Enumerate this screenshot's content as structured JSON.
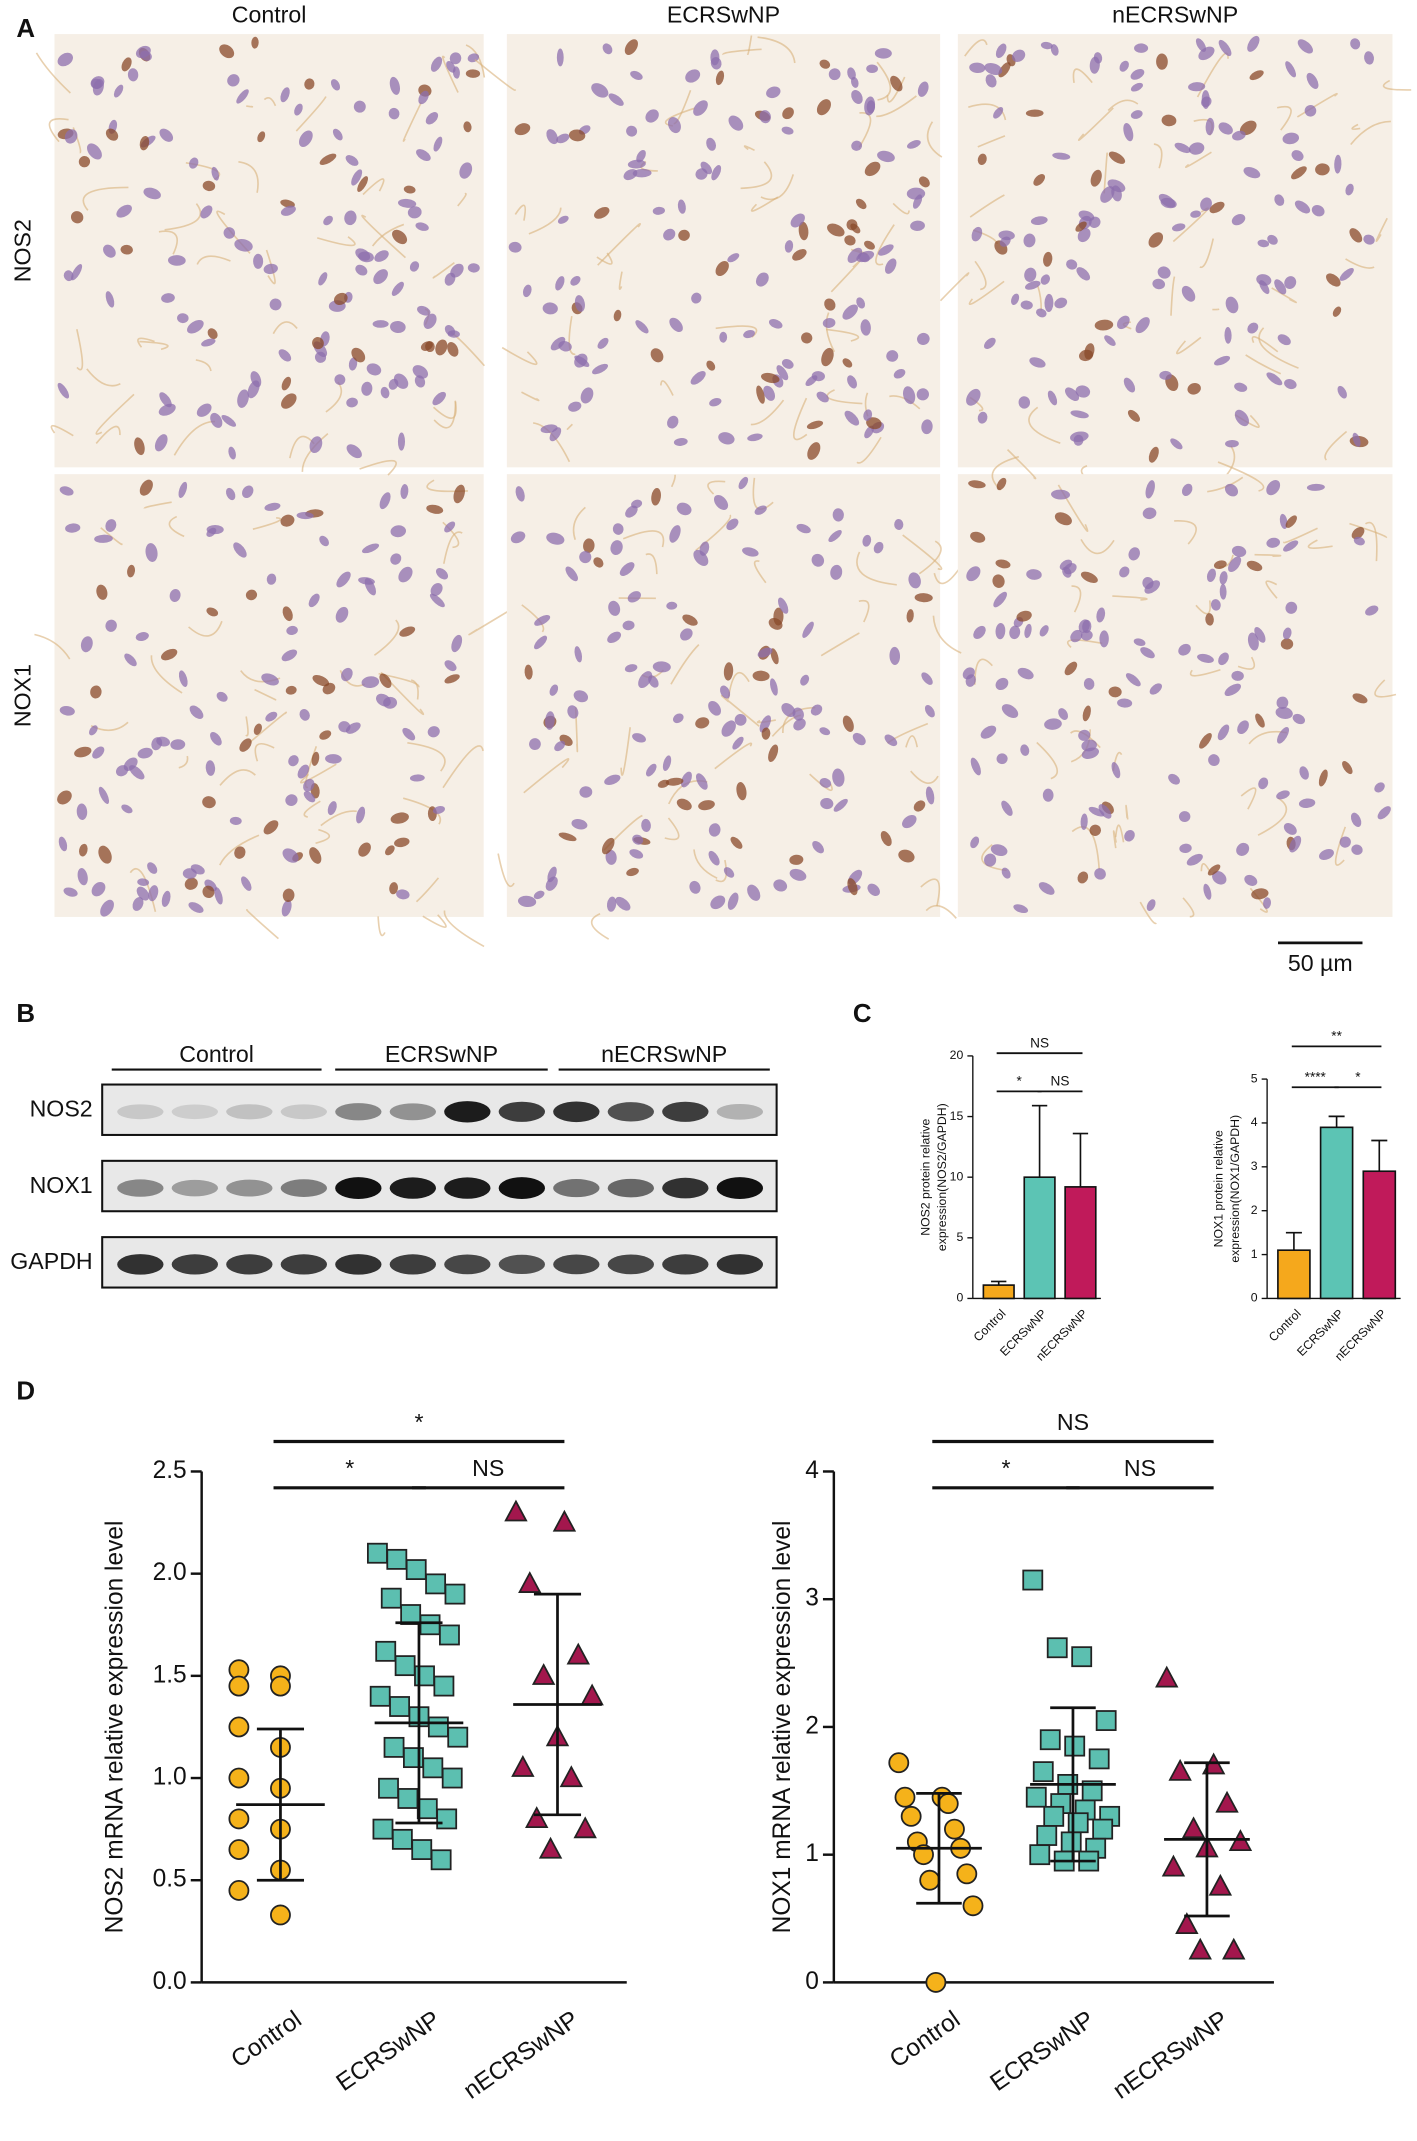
{
  "panel_a": {
    "label": "A",
    "columns": [
      "Control",
      "ECRSwNP",
      "nECRSwNP"
    ],
    "rows": [
      "NOS2",
      "NOX1"
    ],
    "scale_bar": "50 µm"
  },
  "panel_b": {
    "label": "B",
    "groups": [
      "Control",
      "ECRSwNP",
      "nECRSwNP"
    ],
    "rows": [
      "NOS2",
      "NOX1",
      "GAPDH"
    ]
  },
  "panel_c_label": "C",
  "panel_d_label": "D",
  "chart_data": [
    {
      "type": "bar",
      "ylabel": [
        "NOS2 protein relative",
        "expression(NOS2/GAPDH)"
      ],
      "categories": [
        "Control",
        "ECRSwNP",
        "nECRSwNP"
      ],
      "values": [
        1.1,
        10,
        9.2
      ],
      "errors": [
        0.3,
        5.9,
        4.4
      ],
      "colors": [
        "#f5a81c",
        "#5cc4b4",
        "#c01a5a"
      ],
      "ylim": [
        0,
        20
      ],
      "yticks": [
        0,
        5,
        10,
        15,
        20
      ],
      "comparisons": [
        {
          "groups": [
            "Control",
            "nECRSwNP"
          ],
          "label": "NS"
        },
        {
          "groups": [
            "Control",
            "ECRSwNP"
          ],
          "label": "*"
        },
        {
          "groups": [
            "ECRSwNP",
            "nECRSwNP"
          ],
          "label": "NS"
        }
      ]
    },
    {
      "type": "bar",
      "ylabel": [
        "NOX1 protein relative",
        "expression(NOX1/GAPDH)"
      ],
      "categories": [
        "Control",
        "ECRSwNP",
        "nECRSwNP"
      ],
      "values": [
        1.1,
        3.9,
        2.9
      ],
      "errors": [
        0.4,
        0.25,
        0.7
      ],
      "colors": [
        "#f5a81c",
        "#5cc4b4",
        "#c01a5a"
      ],
      "ylim": [
        0,
        5
      ],
      "yticks": [
        0,
        1,
        2,
        3,
        4,
        5
      ],
      "comparisons": [
        {
          "groups": [
            "Control",
            "nECRSwNP"
          ],
          "label": "**"
        },
        {
          "groups": [
            "Control",
            "ECRSwNP"
          ],
          "label": "****"
        },
        {
          "groups": [
            "ECRSwNP",
            "nECRSwNP"
          ],
          "label": "*"
        }
      ]
    },
    {
      "type": "strip",
      "ylabel": "NOS2 mRNA relative expression level",
      "categories": [
        "Control",
        "ECRSwNP",
        "nECRSwNP"
      ],
      "groups": [
        {
          "color": "#f5b21a",
          "marker": "circle",
          "mean": 0.87,
          "sd": 0.37,
          "values": [
            1.53,
            1.5,
            1.45,
            1.45,
            1.25,
            1.15,
            1.0,
            0.95,
            0.8,
            0.75,
            0.65,
            0.55,
            0.45,
            0.33
          ]
        },
        {
          "color": "#5cbfb0",
          "marker": "square",
          "mean": 1.27,
          "sd": 0.49,
          "values": [
            2.1,
            2.07,
            2.02,
            1.95,
            1.9,
            1.88,
            1.8,
            1.75,
            1.7,
            1.62,
            1.55,
            1.5,
            1.45,
            1.4,
            1.35,
            1.3,
            1.25,
            1.2,
            1.15,
            1.1,
            1.05,
            1.0,
            0.95,
            0.9,
            0.85,
            0.8,
            0.75,
            0.7,
            0.65,
            0.6
          ]
        },
        {
          "color": "#a3174d",
          "marker": "triangle",
          "mean": 1.36,
          "sd": 0.54,
          "values": [
            2.3,
            2.25,
            1.95,
            1.6,
            1.5,
            1.4,
            1.2,
            1.05,
            1.0,
            0.8,
            0.75,
            0.65
          ]
        }
      ],
      "ylim": [
        0,
        2.5
      ],
      "yticks": [
        {
          "value": 0,
          "label": "0.0"
        },
        0.5,
        {
          "value": 1,
          "label": "1.0"
        },
        1.5,
        {
          "value": 2,
          "label": "2.0"
        },
        2.5
      ],
      "comparisons": [
        {
          "groups": [
            "Control",
            "nECRSwNP"
          ],
          "label": "*"
        },
        {
          "groups": [
            "Control",
            "ECRSwNP"
          ],
          "label": "*"
        },
        {
          "groups": [
            "ECRSwNP",
            "nECRSwNP"
          ],
          "label": "NS"
        }
      ]
    },
    {
      "type": "strip",
      "ylabel": "NOX1 mRNA relative expression level",
      "categories": [
        "Control",
        "ECRSwNP",
        "nECRSwNP"
      ],
      "groups": [
        {
          "color": "#f5b21a",
          "marker": "circle",
          "mean": 1.05,
          "sd": 0.43,
          "values": [
            1.72,
            1.45,
            1.45,
            1.4,
            1.3,
            1.2,
            1.1,
            1.05,
            1.0,
            0.85,
            0.8,
            0.6,
            0.0
          ]
        },
        {
          "color": "#5cbfb0",
          "marker": "square",
          "mean": 1.55,
          "sd": 0.6,
          "values": [
            3.15,
            2.62,
            2.55,
            2.05,
            1.9,
            1.85,
            1.75,
            1.65,
            1.55,
            1.5,
            1.45,
            1.4,
            1.35,
            1.3,
            1.3,
            1.25,
            1.2,
            1.15,
            1.1,
            1.05,
            1.0,
            0.95,
            0.95
          ]
        },
        {
          "color": "#a3174d",
          "marker": "triangle",
          "mean": 1.12,
          "sd": 0.6,
          "values": [
            2.38,
            1.7,
            1.65,
            1.4,
            1.2,
            1.1,
            1.05,
            0.9,
            0.75,
            0.45,
            0.25,
            0.25
          ]
        }
      ],
      "ylim": [
        0,
        4
      ],
      "yticks": [
        0,
        1,
        2,
        3,
        4
      ],
      "comparisons": [
        {
          "groups": [
            "Control",
            "nECRSwNP"
          ],
          "label": "NS"
        },
        {
          "groups": [
            "Control",
            "ECRSwNP"
          ],
          "label": "*"
        },
        {
          "groups": [
            "ECRSwNP",
            "nECRSwNP"
          ],
          "label": "NS"
        }
      ]
    }
  ]
}
